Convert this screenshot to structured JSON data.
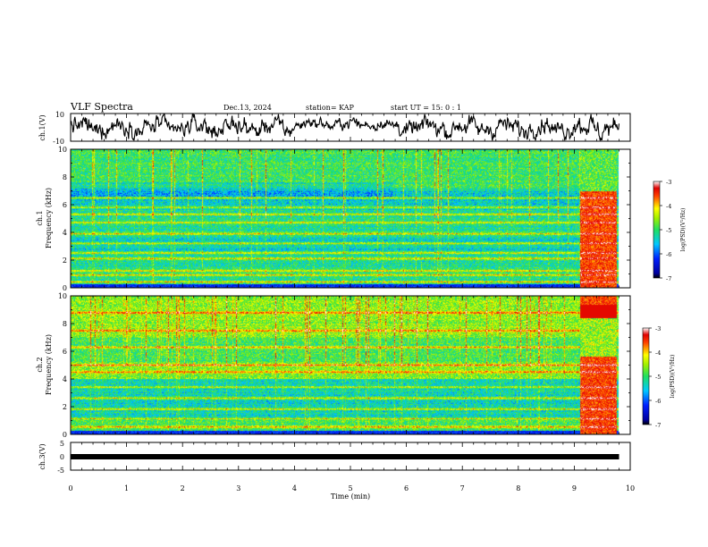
{
  "header": {
    "title": "VLF Spectra",
    "date": "Dec.13, 2024",
    "station": "station= KAP",
    "start": "start UT =  15: 0  : 1"
  },
  "chart_data": [
    {
      "type": "line",
      "panel": "ch1-waveform",
      "ylabel": "ch.1(V)",
      "ylim": [
        -10,
        10
      ],
      "yticks": [
        "10",
        "-10"
      ],
      "xlim": [
        0,
        10
      ],
      "data_end_min": 9.8,
      "series": [
        {
          "trace_color": "#000000",
          "typical_range": [
            -6,
            6
          ]
        }
      ]
    },
    {
      "type": "heatmap",
      "panel": "ch1-spectrogram",
      "ylabel_channel": "ch.1",
      "ylabel": "Frequency (kHz)",
      "ylim": [
        0,
        10
      ],
      "yticks": [
        "0",
        "2",
        "4",
        "6",
        "8",
        "10"
      ],
      "xlim": [
        0,
        10
      ],
      "data_end_min": 9.8,
      "burst_interval_min": [
        9.1,
        9.75
      ],
      "line_bands_khz": [
        0.4,
        0.9,
        1.2,
        2.1,
        2.5,
        3.2,
        3.9,
        4.7,
        5.3,
        5.8,
        6.5
      ],
      "colorbar": {
        "label": "log(PSD)(V²/Hz)",
        "range": [
          -7,
          -3
        ],
        "ticks": [
          "-3",
          "-4",
          "-5",
          "-6",
          "-7"
        ]
      }
    },
    {
      "type": "heatmap",
      "panel": "ch2-spectrogram",
      "ylabel_channel": "ch.2",
      "ylabel": "Frequency (kHz)",
      "ylim": [
        0,
        10
      ],
      "yticks": [
        "0",
        "2",
        "4",
        "6",
        "8",
        "10"
      ],
      "xlim": [
        0,
        10
      ],
      "data_end_min": 9.8,
      "burst_interval_min": [
        9.1,
        9.75
      ],
      "line_bands_khz": [
        0.5,
        1.1,
        1.8,
        2.6,
        3.4,
        4.5,
        5.0,
        6.3,
        7.5,
        8.8
      ],
      "colorbar": {
        "label": "log(PSD)(V²/Hz)",
        "range": [
          -7,
          -3
        ],
        "ticks": [
          "-3",
          "-4",
          "-5",
          "-6",
          "-7"
        ]
      }
    },
    {
      "type": "line",
      "panel": "ch3-waveform",
      "ylabel": "ch.3(V)",
      "ylim": [
        -5,
        5
      ],
      "yticks": [
        "5",
        "0",
        "-5"
      ],
      "xlim": [
        0,
        10
      ],
      "data_end_min": 9.8,
      "series": [
        {
          "trace_color": "#000000",
          "level_v": 0
        }
      ]
    }
  ],
  "xaxis": {
    "label": "Time (min)",
    "ticks": [
      "0",
      "1",
      "2",
      "3",
      "4",
      "5",
      "6",
      "7",
      "8",
      "9",
      "10"
    ]
  }
}
